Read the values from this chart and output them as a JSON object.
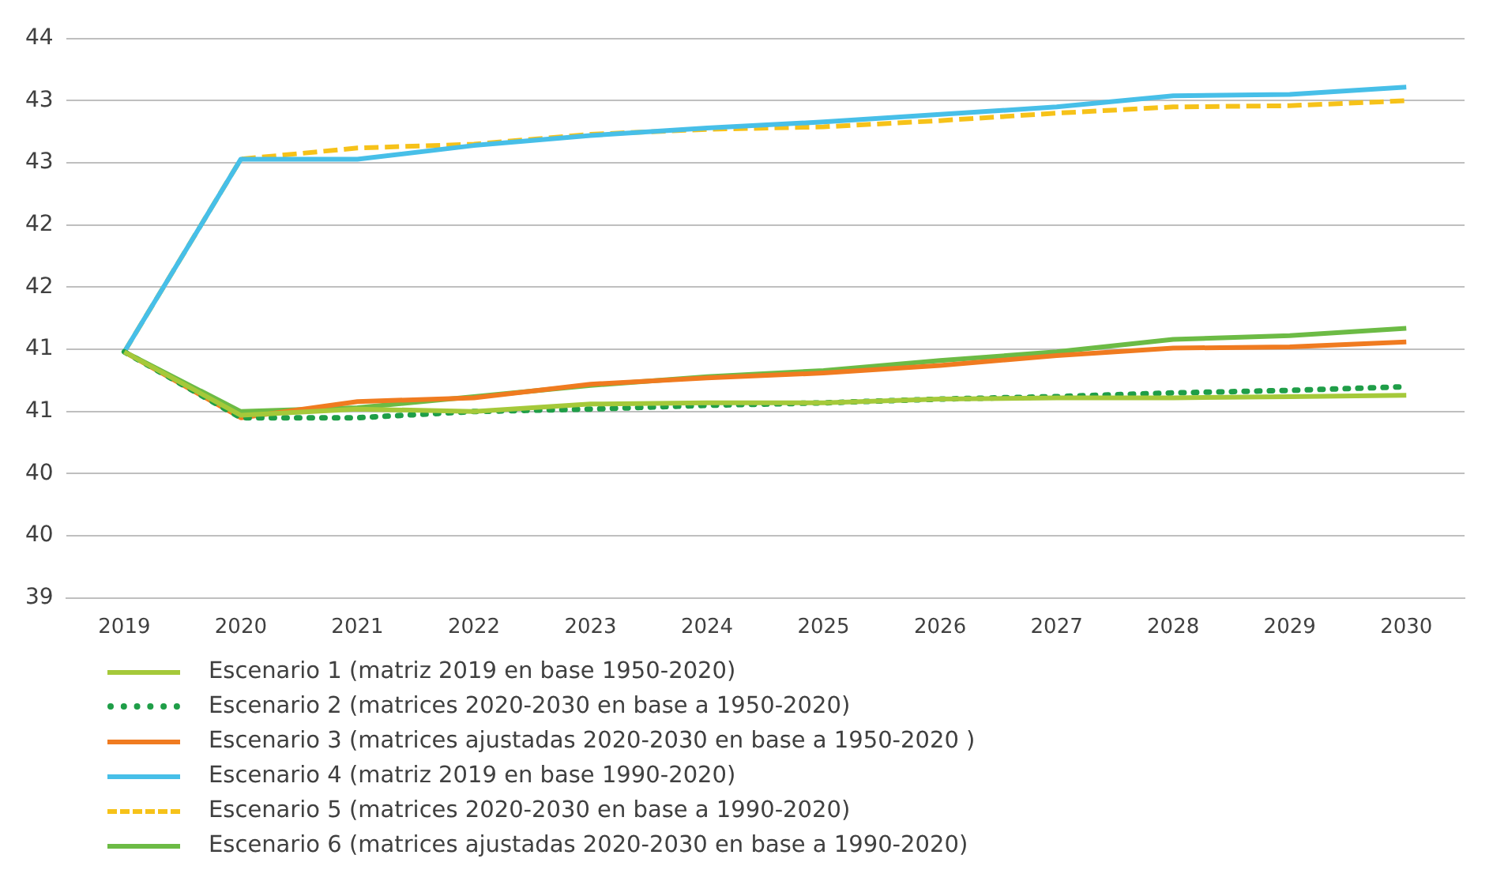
{
  "chart_data": {
    "type": "line",
    "categories": [
      "2019",
      "2020",
      "2021",
      "2022",
      "2023",
      "2024",
      "2025",
      "2026",
      "2027",
      "2028",
      "2029",
      "2030"
    ],
    "ylim": [
      39,
      43.5
    ],
    "yticks": [
      39,
      {
        "value": 39.5,
        "label": "40"
      },
      40,
      {
        "value": 40.5,
        "label": "41"
      },
      41,
      {
        "value": 41.5,
        "label": "42"
      },
      42,
      {
        "value": 42.5,
        "label": "43"
      },
      43,
      {
        "value": 43.5,
        "label": "44"
      }
    ],
    "grid": "y",
    "legend": "bottom",
    "marker": "none",
    "series": [
      {
        "name": "Escenario 1 (matriz 2019 en base 1950-2020)",
        "color": "#a5c93a",
        "line_style": "solid",
        "values": [
          40.98,
          40.47,
          40.52,
          40.5,
          40.56,
          40.57,
          40.57,
          40.6,
          40.61,
          40.61,
          40.62,
          40.63
        ]
      },
      {
        "name": "Escenario 2 (matrices 2020-2030 en base a 1950-2020)",
        "color": "#1f9e48",
        "line_style": "dotted",
        "values": [
          40.98,
          40.45,
          40.45,
          40.5,
          40.52,
          40.55,
          40.57,
          40.6,
          40.62,
          40.65,
          40.67,
          40.7
        ]
      },
      {
        "name": "Escenario 3 (matrices ajustadas 2020-2030 en base a 1950-2020 )",
        "color": "#f07b20",
        "line_style": "solid",
        "values": [
          40.98,
          40.45,
          40.58,
          40.61,
          40.72,
          40.77,
          40.81,
          40.87,
          40.95,
          41.01,
          41.02,
          41.06
        ]
      },
      {
        "name": "Escenario 4 (matriz 2019 en base 1990-2020)",
        "color": "#47bfe8",
        "line_style": "solid",
        "values": [
          40.98,
          42.53,
          42.53,
          42.64,
          42.72,
          42.78,
          42.83,
          42.89,
          42.95,
          43.04,
          43.05,
          43.11
        ]
      },
      {
        "name": "Escenario 5 (matrices 2020-2030 en base a 1990-2020)",
        "color": "#f6c219",
        "line_style": "dashed",
        "values": [
          40.98,
          42.53,
          42.62,
          42.65,
          42.73,
          42.77,
          42.79,
          42.84,
          42.9,
          42.95,
          42.96,
          43.0
        ]
      },
      {
        "name": "Escenario 6 (matrices ajustadas 2020-2030 en base a 1990-2020)",
        "color": "#6cbb45",
        "line_style": "solid",
        "values": [
          40.98,
          40.5,
          40.53,
          40.62,
          40.71,
          40.78,
          40.83,
          40.91,
          40.98,
          41.08,
          41.11,
          41.17
        ]
      }
    ]
  }
}
